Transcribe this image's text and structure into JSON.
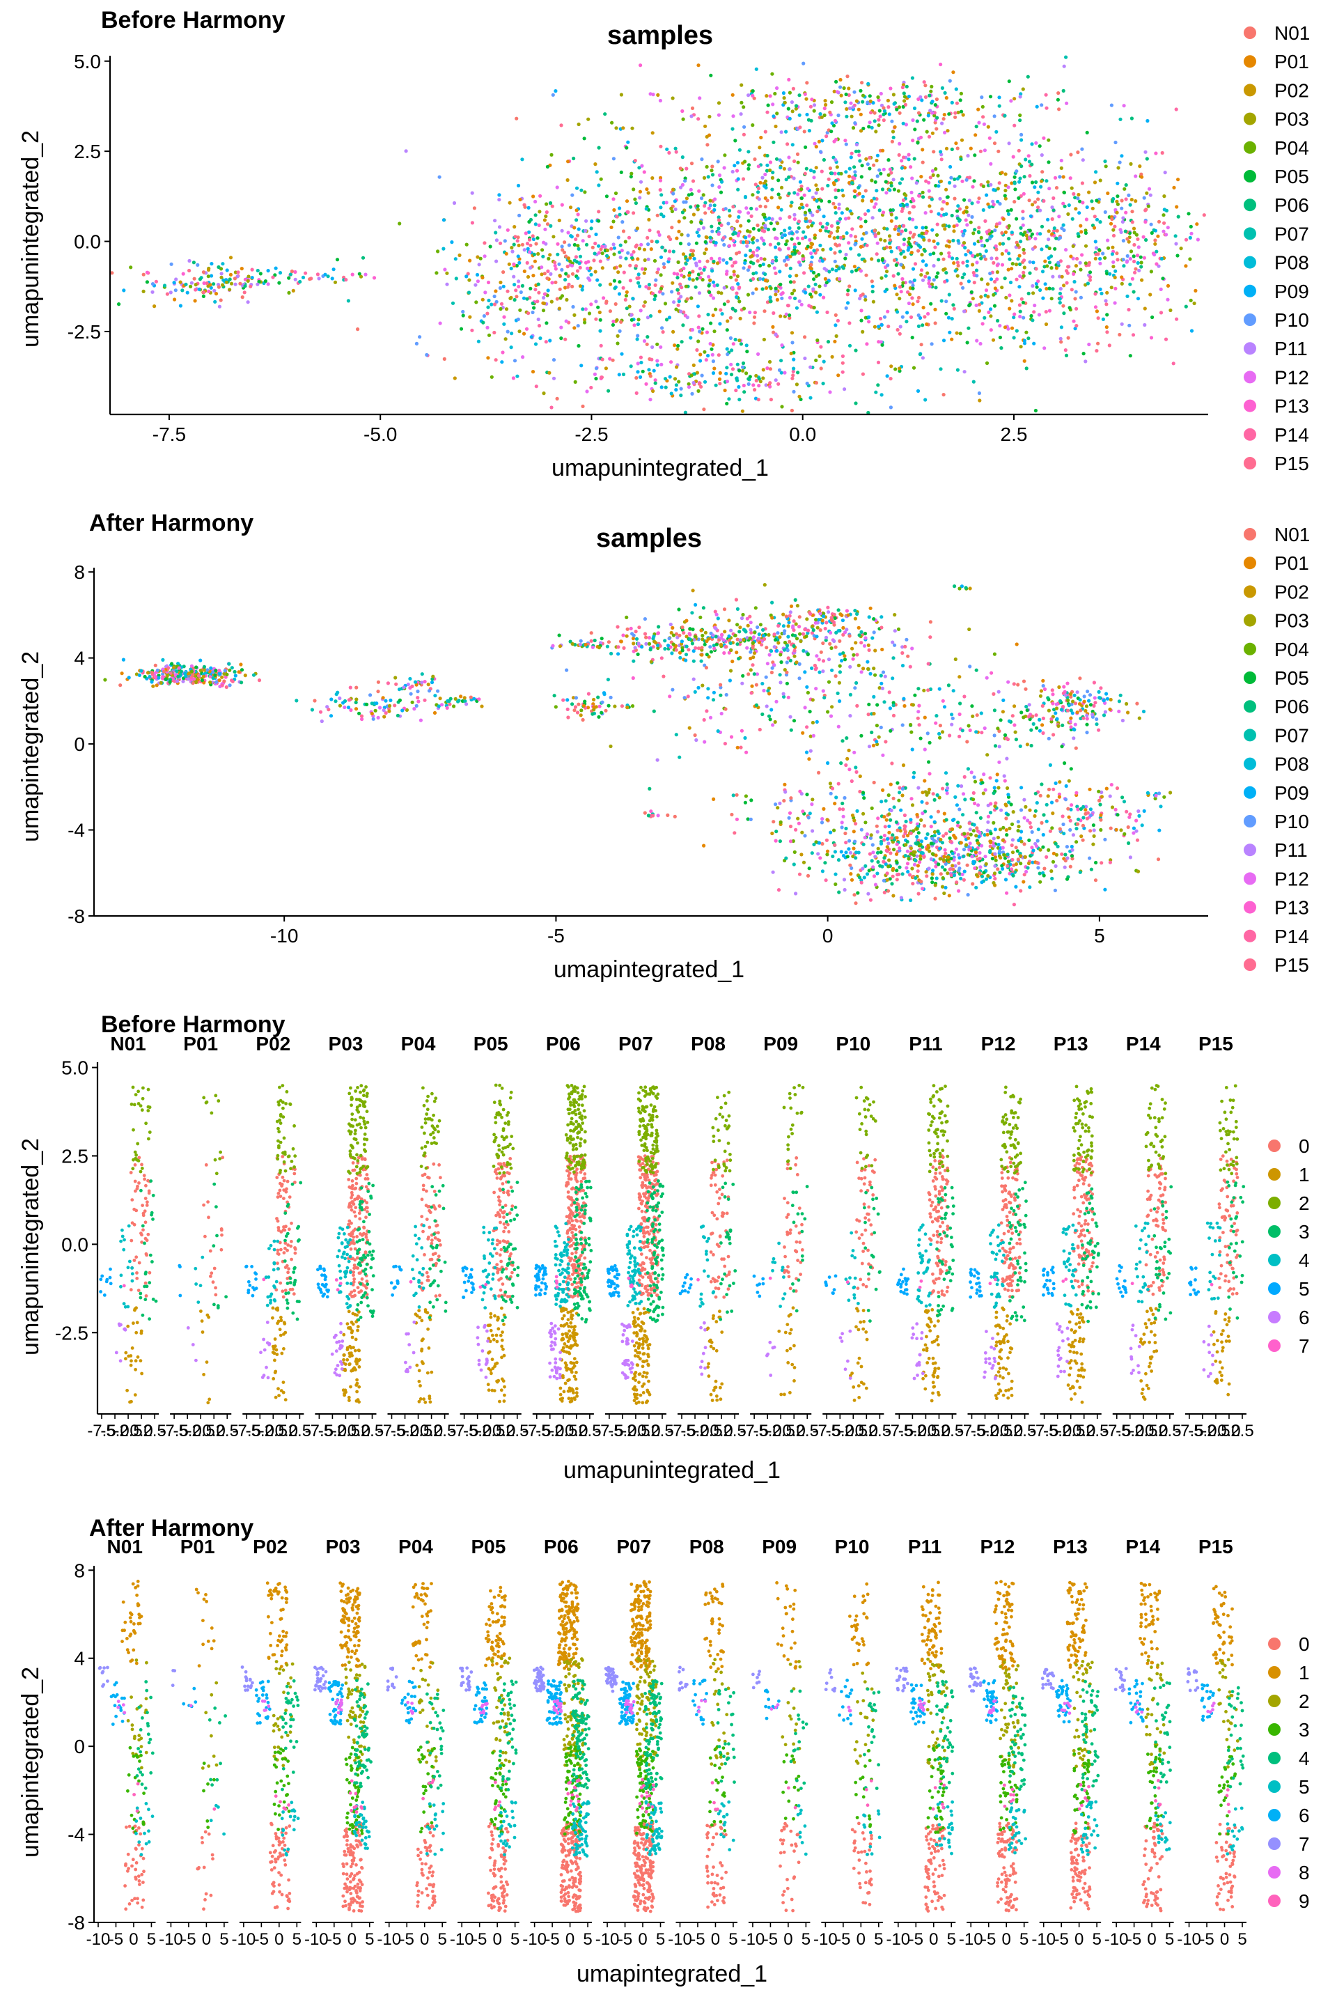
{
  "palette16": [
    "#F8766D",
    "#E58700",
    "#C99800",
    "#A3A500",
    "#6BB100",
    "#00BA38",
    "#00BF7D",
    "#00C0AF",
    "#00BCD8",
    "#00B0F6",
    "#619CFF",
    "#B983FF",
    "#E76BF3",
    "#FD61D1",
    "#FF67A4",
    "#FF6C91"
  ],
  "palette8": [
    "#F8766D",
    "#CD9600",
    "#7CAE00",
    "#00BE67",
    "#00BFC4",
    "#00A9FF",
    "#C77CFF",
    "#FF61CC"
  ],
  "palette10": [
    "#F8766D",
    "#D89000",
    "#A3A500",
    "#39B600",
    "#00BF7D",
    "#00BFC4",
    "#00B0F6",
    "#9590FF",
    "#E76BF3",
    "#FF62BC"
  ],
  "chart_data": [
    {
      "type": "scatter",
      "panel_label": "Before Harmony",
      "title": "samples",
      "xlabel": "umapunintegrated_1",
      "ylabel": "umapunintegrated_2",
      "xlim": [
        -8.2,
        4.8
      ],
      "ylim": [
        -4.8,
        5.15
      ],
      "xticks": [
        -7.5,
        -5.0,
        -2.5,
        0.0,
        2.5
      ],
      "xtick_labels": [
        "-7.5",
        "-5.0",
        "-2.5",
        "0.0",
        "2.5"
      ],
      "yticks": [
        -2.5,
        0.0,
        2.5,
        5.0
      ],
      "ytick_labels": [
        "-2.5",
        "0.0",
        "2.5",
        "5.0"
      ],
      "legend_title": "",
      "legend_position": "right",
      "legend": [
        "N01",
        "P01",
        "P02",
        "P03",
        "P04",
        "P05",
        "P06",
        "P07",
        "P08",
        "P09",
        "P10",
        "P11",
        "P12",
        "P13",
        "P14",
        "P15"
      ],
      "clusters": [
        {
          "cx": 0.5,
          "cy": 0.5,
          "sx": 1.6,
          "sy": 1.8,
          "n": 1500
        },
        {
          "cx": -1.5,
          "cy": -1.0,
          "sx": 1.3,
          "sy": 1.5,
          "n": 600
        },
        {
          "cx": 2.8,
          "cy": -0.4,
          "sx": 0.9,
          "sy": 1.2,
          "n": 450
        },
        {
          "cx": -3.2,
          "cy": -0.7,
          "sx": 0.5,
          "sy": 1.1,
          "n": 220
        },
        {
          "cx": -1.0,
          "cy": -3.8,
          "sx": 1.0,
          "sy": 0.35,
          "n": 160
        },
        {
          "cx": 0.8,
          "cy": 3.8,
          "sx": 0.9,
          "sy": 0.4,
          "n": 180
        },
        {
          "cx": -7.0,
          "cy": -1.1,
          "sx": 0.45,
          "sy": 0.28,
          "n": 140
        },
        {
          "cx": -5.7,
          "cy": -1.0,
          "sx": 0.35,
          "sy": 0.1,
          "n": 30
        },
        {
          "cx": 4.1,
          "cy": 0.3,
          "sx": 0.25,
          "sy": 0.8,
          "n": 80
        }
      ]
    },
    {
      "type": "scatter",
      "panel_label": "After Harmony",
      "title": "samples",
      "xlabel": "umapintegrated_1",
      "ylabel": "umapintegrated_2",
      "xlim": [
        -13.5,
        7.0
      ],
      "ylim": [
        -8.0,
        8.2
      ],
      "xticks": [
        -10,
        -5,
        0,
        5
      ],
      "xtick_labels": [
        "-10",
        "-5",
        "0",
        "5"
      ],
      "yticks": [
        -8,
        -4,
        0,
        4,
        8
      ],
      "ytick_labels": [
        "-8",
        "-4",
        "0",
        "4",
        "8"
      ],
      "legend_title": "",
      "legend_position": "right",
      "legend": [
        "N01",
        "P01",
        "P02",
        "P03",
        "P04",
        "P05",
        "P06",
        "P07",
        "P08",
        "P09",
        "P10",
        "P11",
        "P12",
        "P13",
        "P14",
        "P15"
      ],
      "clusters": [
        {
          "cx": -11.8,
          "cy": 3.2,
          "sx": 0.5,
          "sy": 0.25,
          "n": 260
        },
        {
          "cx": -8.2,
          "cy": 1.8,
          "sx": 0.6,
          "sy": 0.4,
          "n": 80
        },
        {
          "cx": -7.6,
          "cy": 2.8,
          "sx": 0.2,
          "sy": 0.2,
          "n": 30
        },
        {
          "cx": -6.8,
          "cy": 2.0,
          "sx": 0.25,
          "sy": 0.15,
          "n": 25
        },
        {
          "cx": -4.3,
          "cy": 1.8,
          "sx": 0.35,
          "sy": 0.3,
          "n": 50
        },
        {
          "cx": -4.4,
          "cy": 4.6,
          "sx": 0.3,
          "sy": 0.1,
          "n": 25
        },
        {
          "cx": -2.5,
          "cy": 4.8,
          "sx": 0.9,
          "sy": 0.5,
          "n": 220
        },
        {
          "cx": -0.5,
          "cy": 5.0,
          "sx": 0.9,
          "sy": 0.8,
          "n": 220
        },
        {
          "cx": 0.2,
          "cy": 6.0,
          "sx": 0.3,
          "sy": 0.2,
          "n": 30
        },
        {
          "cx": -1.0,
          "cy": 2.5,
          "sx": 1.3,
          "sy": 1.6,
          "n": 160
        },
        {
          "cx": 1.5,
          "cy": 1.5,
          "sx": 1.2,
          "sy": 1.8,
          "n": 140
        },
        {
          "cx": 4.5,
          "cy": 1.8,
          "sx": 0.5,
          "sy": 0.5,
          "n": 130
        },
        {
          "cx": 3.5,
          "cy": 0.8,
          "sx": 0.7,
          "sy": 0.5,
          "n": 60
        },
        {
          "cx": 2.2,
          "cy": -5.2,
          "sx": 1.3,
          "sy": 0.9,
          "n": 650
        },
        {
          "cx": 3.0,
          "cy": -2.8,
          "sx": 1.2,
          "sy": 0.9,
          "n": 180
        },
        {
          "cx": 0.0,
          "cy": -3.0,
          "sx": 1.2,
          "sy": 1.0,
          "n": 100
        },
        {
          "cx": -3.2,
          "cy": -3.3,
          "sx": 0.12,
          "sy": 0.08,
          "n": 8
        },
        {
          "cx": 2.4,
          "cy": 7.3,
          "sx": 0.1,
          "sy": 0.05,
          "n": 6
        },
        {
          "cx": 6.0,
          "cy": -2.4,
          "sx": 0.1,
          "sy": 0.1,
          "n": 10
        },
        {
          "cx": 5.0,
          "cy": -3.5,
          "sx": 0.6,
          "sy": 0.6,
          "n": 60
        }
      ]
    },
    {
      "type": "scatter",
      "panel_label": "Before Harmony",
      "facet_by": "sample",
      "facets": [
        "N01",
        "P01",
        "P02",
        "P03",
        "P04",
        "P05",
        "P06",
        "P07",
        "P08",
        "P09",
        "P10",
        "P11",
        "P12",
        "P13",
        "P14",
        "P15"
      ],
      "facet_density": [
        0.35,
        0.12,
        0.5,
        1.0,
        0.45,
        0.7,
        1.55,
        1.5,
        0.4,
        0.25,
        0.3,
        0.7,
        0.75,
        0.75,
        0.5,
        0.45
      ],
      "xlabel": "umapunintegrated_1",
      "ylabel": "umapunintegrated_2",
      "ylim": [
        -4.8,
        5.15
      ],
      "yticks": [
        -2.5,
        0.0,
        2.5,
        5.0
      ],
      "ytick_labels": [
        "-2.5",
        "0.0",
        "2.5",
        "5.0"
      ],
      "facet_xtick_labels": [
        "-7.5",
        "-5.0",
        "-2.5",
        "0.0",
        "2.5"
      ],
      "legend_title": "",
      "legend_position": "right",
      "legend": [
        "0",
        "1",
        "2",
        "3",
        "4",
        "5",
        "6",
        "7"
      ],
      "cluster_profiles": [
        {
          "cluster": "0",
          "xmin": 0.55,
          "xmax": 0.9,
          "ymin": -1.5,
          "ymax": 2.5,
          "weight": 1.6
        },
        {
          "cluster": "1",
          "xmin": 0.45,
          "xmax": 0.75,
          "ymin": -4.5,
          "ymax": -1.8,
          "weight": 0.8
        },
        {
          "cluster": "2",
          "xmin": 0.55,
          "xmax": 0.9,
          "ymin": 2.0,
          "ymax": 4.5,
          "weight": 0.9
        },
        {
          "cluster": "3",
          "xmin": 0.7,
          "xmax": 1.0,
          "ymin": -2.2,
          "ymax": 1.8,
          "weight": 0.7
        },
        {
          "cluster": "4",
          "xmin": 0.35,
          "xmax": 0.6,
          "ymin": -1.8,
          "ymax": 0.6,
          "weight": 0.5
        },
        {
          "cluster": "5",
          "xmin": 0.0,
          "xmax": 0.2,
          "ymin": -1.5,
          "ymax": -0.6,
          "weight": 0.3
        },
        {
          "cluster": "6",
          "xmin": 0.25,
          "xmax": 0.45,
          "ymin": -3.8,
          "ymax": -2.2,
          "weight": 0.25
        },
        {
          "cluster": "7",
          "xmin": 0.3,
          "xmax": 0.45,
          "ymin": -1.3,
          "ymax": -0.9,
          "weight": 0.03
        }
      ]
    },
    {
      "type": "scatter",
      "panel_label": "After Harmony",
      "facet_by": "sample",
      "facets": [
        "N01",
        "P01",
        "P02",
        "P03",
        "P04",
        "P05",
        "P06",
        "P07",
        "P08",
        "P09",
        "P10",
        "P11",
        "P12",
        "P13",
        "P14",
        "P15"
      ],
      "facet_density": [
        0.35,
        0.12,
        0.5,
        1.0,
        0.45,
        0.7,
        1.55,
        1.5,
        0.4,
        0.25,
        0.3,
        0.7,
        0.75,
        0.75,
        0.5,
        0.45
      ],
      "xlabel": "umapintegrated_1",
      "ylabel": "umapintegrated_2",
      "ylim": [
        -8.0,
        8.2
      ],
      "yticks": [
        -8,
        -4,
        0,
        4,
        8
      ],
      "ytick_labels": [
        "-8",
        "-4",
        "0",
        "4",
        "8"
      ],
      "facet_xtick_labels": [
        "-10",
        "-5",
        "0",
        "5"
      ],
      "legend_title": "",
      "legend_position": "right",
      "legend": [
        "0",
        "1",
        "2",
        "3",
        "4",
        "5",
        "6",
        "7",
        "8",
        "9"
      ],
      "cluster_profiles": [
        {
          "cluster": "0",
          "xmin": 0.5,
          "xmax": 0.85,
          "ymin": -7.5,
          "ymax": -3.5,
          "weight": 1.3
        },
        {
          "cluster": "1",
          "xmin": 0.45,
          "xmax": 0.8,
          "ymin": 3.5,
          "ymax": 7.5,
          "weight": 1.1
        },
        {
          "cluster": "2",
          "xmin": 0.55,
          "xmax": 0.9,
          "ymin": -1.0,
          "ymax": 4.0,
          "weight": 0.7
        },
        {
          "cluster": "3",
          "xmin": 0.55,
          "xmax": 0.85,
          "ymin": -4.0,
          "ymax": 0.0,
          "weight": 0.6
        },
        {
          "cluster": "4",
          "xmin": 0.7,
          "xmax": 1.0,
          "ymin": -2.0,
          "ymax": 3.0,
          "weight": 0.7
        },
        {
          "cluster": "5",
          "xmin": 0.7,
          "xmax": 1.0,
          "ymin": -5.0,
          "ymax": -2.5,
          "weight": 0.4
        },
        {
          "cluster": "6",
          "xmin": 0.25,
          "xmax": 0.5,
          "ymin": 1.0,
          "ymax": 3.0,
          "weight": 0.5
        },
        {
          "cluster": "7",
          "xmin": 0.0,
          "xmax": 0.2,
          "ymin": 2.5,
          "ymax": 3.6,
          "weight": 0.3
        },
        {
          "cluster": "8",
          "xmin": 0.35,
          "xmax": 0.5,
          "ymin": 1.5,
          "ymax": 2.1,
          "weight": 0.12
        },
        {
          "cluster": "9",
          "xmin": 0.6,
          "xmax": 0.85,
          "ymin": -3.0,
          "ymax": -1.5,
          "weight": 0.1
        }
      ]
    }
  ]
}
